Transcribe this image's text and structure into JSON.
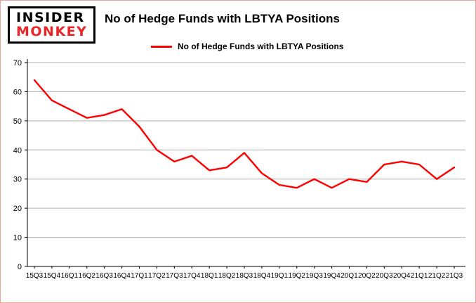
{
  "brand": {
    "line1": "INSIDER",
    "line2": "MONKEY",
    "line2_color": "#e8262a"
  },
  "header": {
    "title": "No of Hedge Funds with LBTYA Positions"
  },
  "legend": {
    "label": "No of Hedge Funds with LBTYA Positions",
    "color": "#ff0000",
    "position": "top"
  },
  "chart_data": {
    "type": "line",
    "title": "No of Hedge Funds with LBTYA Positions",
    "xlabel": "",
    "ylabel": "",
    "categories": [
      "15Q3",
      "15Q4",
      "16Q1",
      "16Q2",
      "16Q3",
      "16Q4",
      "17Q1",
      "17Q2",
      "17Q3",
      "17Q4",
      "18Q1",
      "18Q2",
      "18Q3",
      "18Q4",
      "19Q1",
      "19Q2",
      "19Q3",
      "19Q4",
      "20Q1",
      "20Q2",
      "20Q3",
      "20Q4",
      "21Q1",
      "21Q2",
      "21Q3"
    ],
    "series": [
      {
        "name": "No of Hedge Funds with LBTYA Positions",
        "color": "#ff0000",
        "values": [
          64,
          57,
          54,
          51,
          52,
          54,
          48,
          40,
          36,
          38,
          33,
          34,
          39,
          32,
          28,
          27,
          30,
          27,
          30,
          29,
          35,
          36,
          35,
          30,
          34
        ]
      }
    ],
    "ylim": [
      0,
      70
    ],
    "ytick_interval": 10,
    "yticks": [
      0,
      10,
      20,
      30,
      40,
      50,
      60,
      70
    ],
    "grid": true,
    "grid_color": "#b0b0b0",
    "axis_color": "#000000",
    "legend_position": "top"
  }
}
